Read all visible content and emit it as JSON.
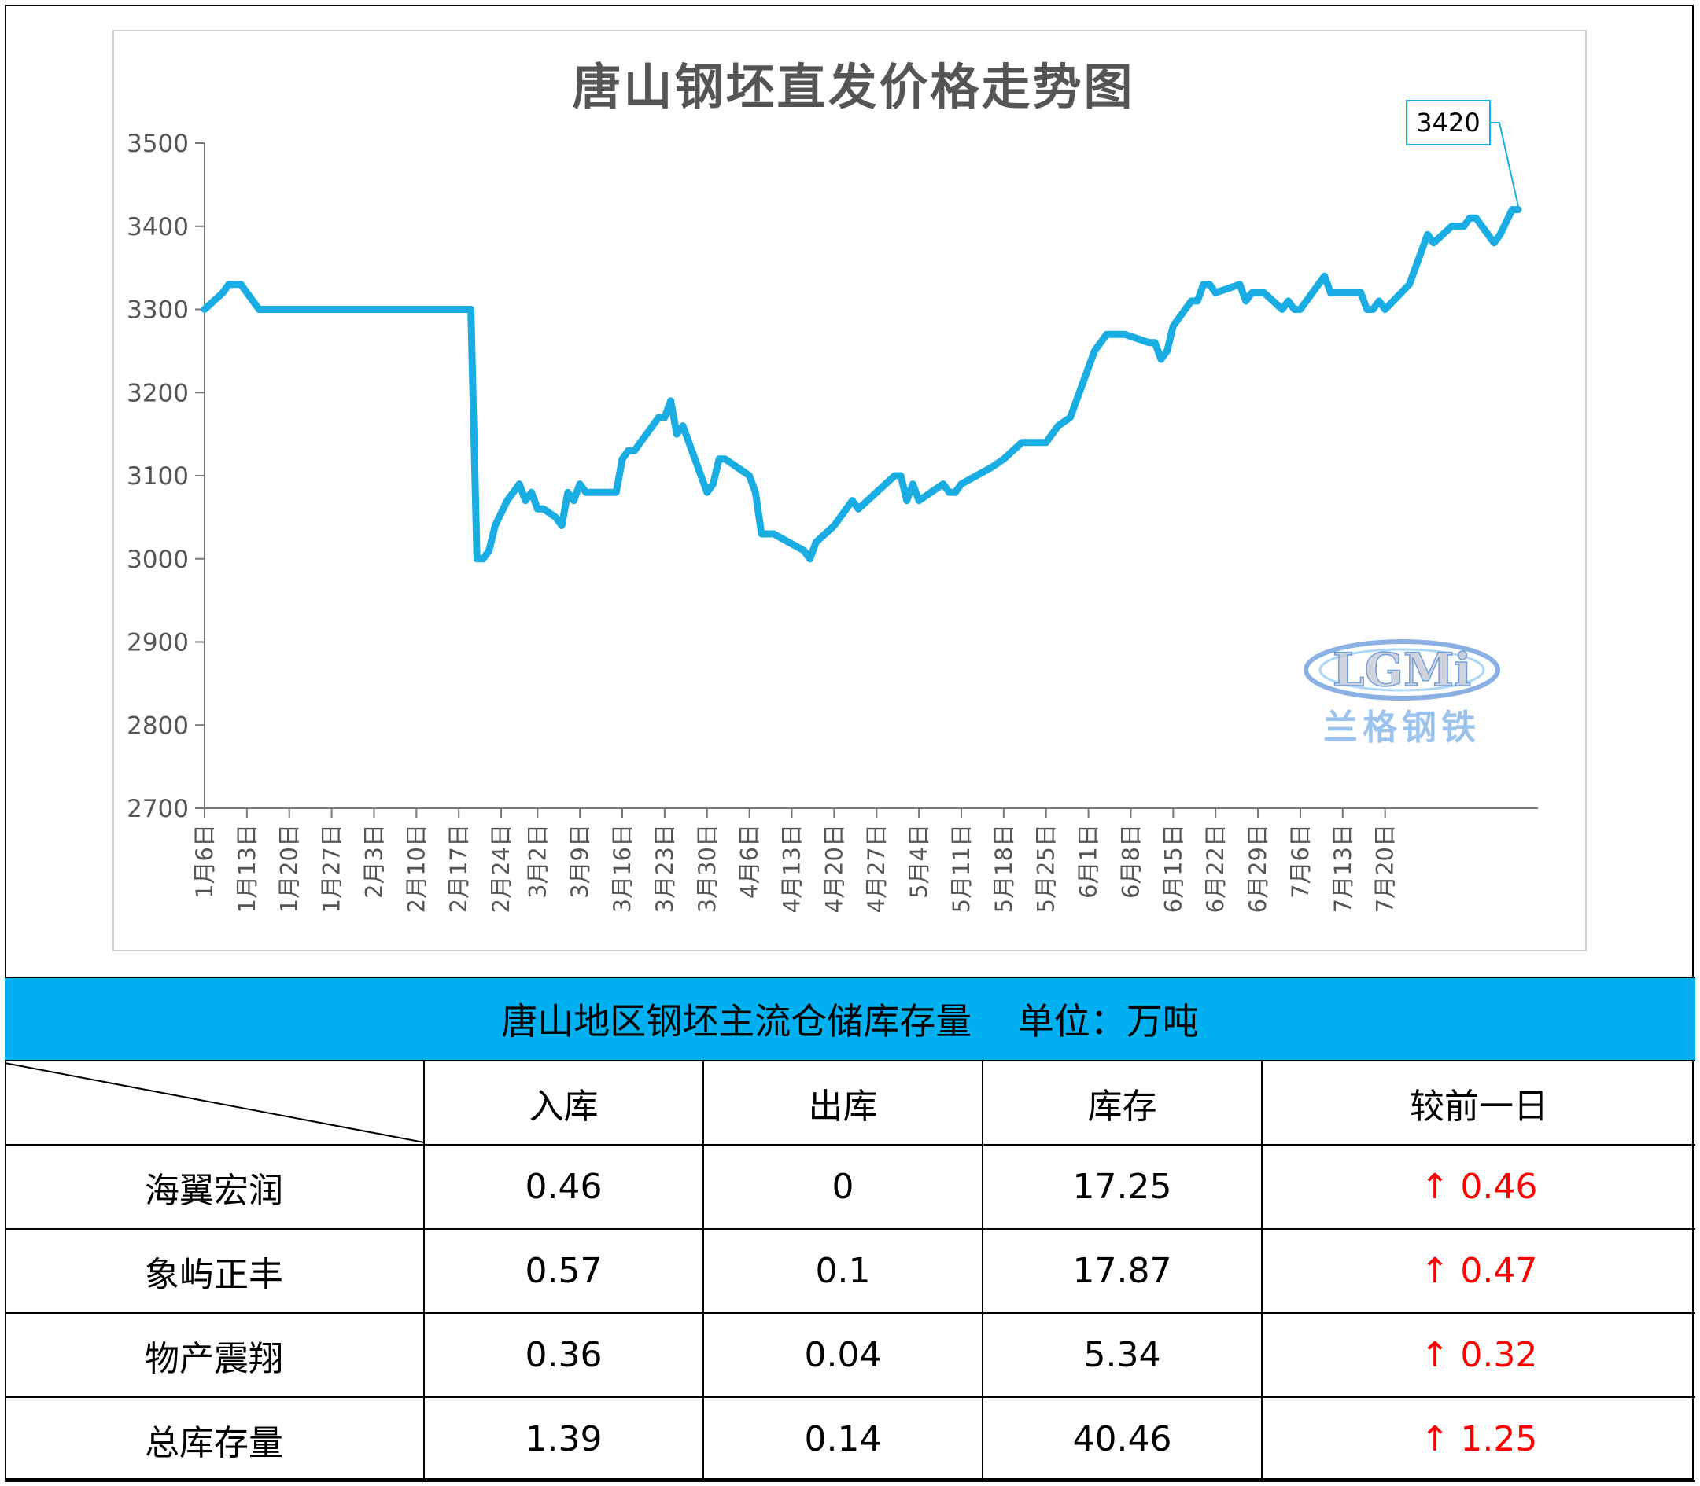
{
  "chart_data": {
    "type": "line",
    "title": "唐山钢坯直发价格走势图",
    "ylim": [
      2700,
      3500
    ],
    "yticks": [
      2700,
      2800,
      2900,
      3000,
      3100,
      3200,
      3300,
      3400,
      3500
    ],
    "xtick_labels": [
      "1月6日",
      "1月13日",
      "1月20日",
      "1月27日",
      "2月3日",
      "2月10日",
      "2月17日",
      "2月24日",
      "3月2日",
      "3月9日",
      "3月16日",
      "3月23日",
      "3月30日",
      "4月6日",
      "4月13日",
      "4月20日",
      "4月27日",
      "5月4日",
      "5月11日",
      "5月18日",
      "5月25日",
      "6月1日",
      "6月8日",
      "6月15日",
      "6月22日",
      "6月29日",
      "7月6日",
      "7月13日",
      "7月20日"
    ],
    "series": [
      {
        "color": "#1aade4",
        "values": [
          [
            "1月6日",
            3300
          ],
          [
            "1月9日",
            3320
          ],
          [
            "1月10日",
            3330
          ],
          [
            "1月12日",
            3330
          ],
          [
            "1月15日",
            3300
          ],
          [
            "2月19日",
            3300
          ],
          [
            "2月20日",
            3000
          ],
          [
            "2月21日",
            3000
          ],
          [
            "2月22日",
            3010
          ],
          [
            "2月23日",
            3040
          ],
          [
            "2月25日",
            3070
          ],
          [
            "2月27日",
            3090
          ],
          [
            "2月28日",
            3070
          ],
          [
            "3月1日",
            3080
          ],
          [
            "3月2日",
            3060
          ],
          [
            "3月3日",
            3060
          ],
          [
            "3月5日",
            3050
          ],
          [
            "3月6日",
            3040
          ],
          [
            "3月7日",
            3080
          ],
          [
            "3月8日",
            3070
          ],
          [
            "3月9日",
            3090
          ],
          [
            "3月10日",
            3080
          ],
          [
            "3月15日",
            3080
          ],
          [
            "3月16日",
            3120
          ],
          [
            "3月17日",
            3130
          ],
          [
            "3月18日",
            3130
          ],
          [
            "3月20日",
            3150
          ],
          [
            "3月22日",
            3170
          ],
          [
            "3月23日",
            3170
          ],
          [
            "3月24日",
            3190
          ],
          [
            "3月25日",
            3150
          ],
          [
            "3月26日",
            3160
          ],
          [
            "3月28日",
            3120
          ],
          [
            "3月30日",
            3080
          ],
          [
            "3月31日",
            3090
          ],
          [
            "4月1日",
            3120
          ],
          [
            "4月2日",
            3120
          ],
          [
            "4月6日",
            3100
          ],
          [
            "4月7日",
            3080
          ],
          [
            "4月8日",
            3030
          ],
          [
            "4月10日",
            3030
          ],
          [
            "4月15日",
            3010
          ],
          [
            "4月16日",
            3000
          ],
          [
            "4月17日",
            3020
          ],
          [
            "4月20日",
            3040
          ],
          [
            "4月22日",
            3060
          ],
          [
            "4月23日",
            3070
          ],
          [
            "4月24日",
            3060
          ],
          [
            "4月27日",
            3080
          ],
          [
            "4月30日",
            3100
          ],
          [
            "5月1日",
            3100
          ],
          [
            "5月2日",
            3070
          ],
          [
            "5月3日",
            3090
          ],
          [
            "5月4日",
            3070
          ],
          [
            "5月6日",
            3080
          ],
          [
            "5月8日",
            3090
          ],
          [
            "5月9日",
            3080
          ],
          [
            "5月10日",
            3080
          ],
          [
            "5月11日",
            3090
          ],
          [
            "5月16日",
            3110
          ],
          [
            "5月18日",
            3120
          ],
          [
            "5月21日",
            3140
          ],
          [
            "5月25日",
            3140
          ],
          [
            "5月27日",
            3160
          ],
          [
            "5月29日",
            3170
          ],
          [
            "6月2日",
            3250
          ],
          [
            "6月4日",
            3270
          ],
          [
            "6月7日",
            3270
          ],
          [
            "6月11日",
            3260
          ],
          [
            "6月12日",
            3260
          ],
          [
            "6月13日",
            3240
          ],
          [
            "6月14日",
            3250
          ],
          [
            "6月15日",
            3280
          ],
          [
            "6月18日",
            3310
          ],
          [
            "6月19日",
            3310
          ],
          [
            "6月20日",
            3330
          ],
          [
            "6月21日",
            3330
          ],
          [
            "6月22日",
            3320
          ],
          [
            "6月26日",
            3330
          ],
          [
            "6月27日",
            3310
          ],
          [
            "6月28日",
            3320
          ],
          [
            "6月30日",
            3320
          ],
          [
            "7月3日",
            3300
          ],
          [
            "7月4日",
            3310
          ],
          [
            "7月5日",
            3300
          ],
          [
            "7月6日",
            3300
          ],
          [
            "7月10日",
            3340
          ],
          [
            "7月11日",
            3320
          ],
          [
            "7月16日",
            3320
          ],
          [
            "7月17日",
            3300
          ],
          [
            "7月18日",
            3300
          ],
          [
            "7月19日",
            3310
          ],
          [
            "7月20日",
            3300
          ],
          [
            "7月24日",
            3330
          ],
          [
            "7月26日",
            3370
          ],
          [
            "7月27日",
            3390
          ],
          [
            "7月28日",
            3380
          ],
          [
            "7月31日",
            3400
          ],
          [
            "8月2日",
            3400
          ],
          [
            "8月3日",
            3410
          ],
          [
            "8月4日",
            3410
          ],
          [
            "8月7日",
            3380
          ],
          [
            "8月8日",
            3390
          ],
          [
            "8月10日",
            3420
          ],
          [
            "8月11日",
            3420
          ]
        ]
      }
    ],
    "data_label": "3420"
  },
  "logo": {
    "text": "LGMi",
    "subtitle": "兰格钢铁"
  },
  "table": {
    "title": "唐山地区钢坯主流仓储库存量",
    "unit": "单位：万吨",
    "headers": [
      "入库",
      "出库",
      "库存",
      "较前一日"
    ],
    "rows": [
      {
        "name": "海翼宏润",
        "in": "0.46",
        "out": "0",
        "stock": "17.25",
        "change": "↑ 0.46"
      },
      {
        "name": "象屿正丰",
        "in": "0.57",
        "out": "0.1",
        "stock": "17.87",
        "change": "↑ 0.47"
      },
      {
        "name": "物产震翔",
        "in": "0.36",
        "out": "0.04",
        "stock": "5.34",
        "change": "↑ 0.32"
      },
      {
        "name": "总库存量",
        "in": "1.39",
        "out": "0.14",
        "stock": "40.46",
        "change": "↑ 1.25"
      }
    ]
  },
  "colors": {
    "line": "#1aade4",
    "header_bar": "#00b0f0",
    "up": "#ff0000"
  }
}
